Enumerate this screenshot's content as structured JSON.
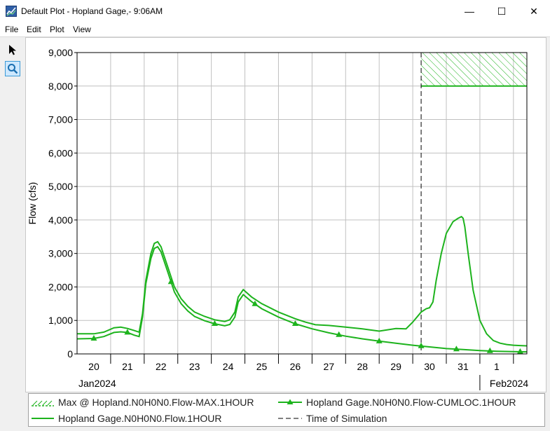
{
  "window": {
    "title": "Default Plot - Hopland Gage,- 9:06AM",
    "minimize_glyph": "—",
    "maximize_glyph": "☐",
    "close_glyph": "✕"
  },
  "menu": [
    "File",
    "Edit",
    "Plot",
    "View"
  ],
  "tools": [
    {
      "name": "pointer-icon",
      "active": false
    },
    {
      "name": "zoom-icon",
      "active": true
    }
  ],
  "colors": {
    "series": "#1db31d",
    "grid": "#c0c0c0",
    "titlebar": "#ffffff",
    "tool_active": "#cde8ff"
  },
  "chart_data": {
    "type": "line",
    "ylabel": "Flow (cfs)",
    "ylim": [
      0,
      9000
    ],
    "yticks": [
      "0",
      "1,000",
      "2,000",
      "3,000",
      "4,000",
      "5,000",
      "6,000",
      "7,000",
      "8,000",
      "9,000"
    ],
    "x_day_labels": [
      "20",
      "21",
      "22",
      "23",
      "24",
      "25",
      "26",
      "27",
      "28",
      "29",
      "30",
      "31",
      "1"
    ],
    "x_month_labels": [
      "Jan2024",
      "Feb2024"
    ],
    "grid": true,
    "time_of_simulation_day": 29.75,
    "max_threshold": {
      "lower": 8000,
      "upper": 9000,
      "from_day": 29.75
    },
    "series": [
      {
        "name": "Hopland Gage.N0H0N0.Flow.1HOUR",
        "x": [
          19.5,
          20,
          20.3,
          20.6,
          20.8,
          21,
          21.2,
          21.35,
          21.45,
          21.55,
          21.7,
          21.8,
          21.9,
          22,
          22.2,
          22.4,
          22.6,
          22.8,
          23,
          23.3,
          23.6,
          23.9,
          24.05,
          24.2,
          24.3,
          24.45,
          24.7,
          25,
          25.5,
          26,
          26.3,
          26.6,
          27,
          27.5,
          28,
          28.5,
          29,
          29.3,
          29.5,
          29.75,
          29.9,
          30,
          30.1,
          30.2,
          30.35,
          30.5,
          30.7,
          30.85,
          30.95,
          31,
          31.05,
          31.15,
          31.3,
          31.5,
          31.7,
          31.9,
          32.1,
          32.3,
          32.5,
          32.7,
          32.9
        ],
        "y": [
          600,
          600,
          650,
          780,
          800,
          760,
          700,
          650,
          1200,
          2200,
          3000,
          3300,
          3350,
          3200,
          2600,
          2000,
          1650,
          1420,
          1250,
          1120,
          1020,
          970,
          1020,
          1250,
          1700,
          1920,
          1700,
          1500,
          1250,
          1050,
          950,
          870,
          850,
          800,
          750,
          680,
          760,
          750,
          950,
          1250,
          1350,
          1380,
          1550,
          2200,
          3000,
          3600,
          3950,
          4050,
          4100,
          4050,
          3800,
          3000,
          1900,
          1000,
          600,
          400,
          320,
          280,
          260,
          250,
          240
        ]
      },
      {
        "name": "Hopland Gage.N0H0N0.Flow-CUMLOC.1HOUR",
        "x": [
          19.5,
          20,
          20.3,
          20.6,
          20.8,
          21,
          21.2,
          21.35,
          21.45,
          21.55,
          21.7,
          21.8,
          21.9,
          22,
          22.2,
          22.4,
          22.6,
          22.8,
          23,
          23.3,
          23.6,
          23.9,
          24.05,
          24.2,
          24.3,
          24.45,
          24.7,
          25,
          25.5,
          26,
          26.5,
          27,
          27.5,
          28,
          28.5,
          29,
          29.5,
          30,
          30.5,
          31,
          31.5,
          32,
          32.5,
          32.9
        ],
        "y": [
          450,
          460,
          520,
          640,
          660,
          640,
          560,
          520,
          1100,
          2100,
          2850,
          3150,
          3200,
          3050,
          2450,
          1850,
          1500,
          1280,
          1120,
          990,
          900,
          840,
          880,
          1100,
          1550,
          1770,
          1560,
          1350,
          1100,
          900,
          750,
          630,
          530,
          450,
          380,
          320,
          260,
          210,
          160,
          130,
          100,
          80,
          70,
          60
        ],
        "markers_x": [
          20.0,
          21.0,
          22.3,
          23.6,
          24.8,
          26.0,
          27.3,
          28.5,
          29.75,
          30.8,
          31.8,
          32.7
        ]
      },
      {
        "name": "Max @ Hopland.N0H0N0.Flow-MAX.1HOUR"
      },
      {
        "name": "Time of Simulation"
      }
    ]
  }
}
